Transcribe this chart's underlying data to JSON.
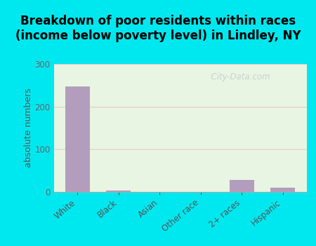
{
  "title": "Breakdown of poor residents within races\n(income below poverty level) in Lindley, NY",
  "categories": [
    "White",
    "Black",
    "Asian",
    "Other race",
    "2+ races",
    "Hispanic"
  ],
  "values": [
    248,
    4,
    0,
    0,
    28,
    10
  ],
  "bar_color": "#b39dbd",
  "ylabel": "absolute numbers",
  "ylim": [
    0,
    300
  ],
  "yticks": [
    0,
    100,
    200,
    300
  ],
  "bg_outer": "#00e8ef",
  "bg_plot_top": "#e8f5e2",
  "bg_plot_bottom": "#f5f5f0",
  "grid_color": "#e8c8c8",
  "watermark": "  City-Data.com",
  "title_fontsize": 12,
  "ylabel_fontsize": 9,
  "tick_fontsize": 8.5
}
